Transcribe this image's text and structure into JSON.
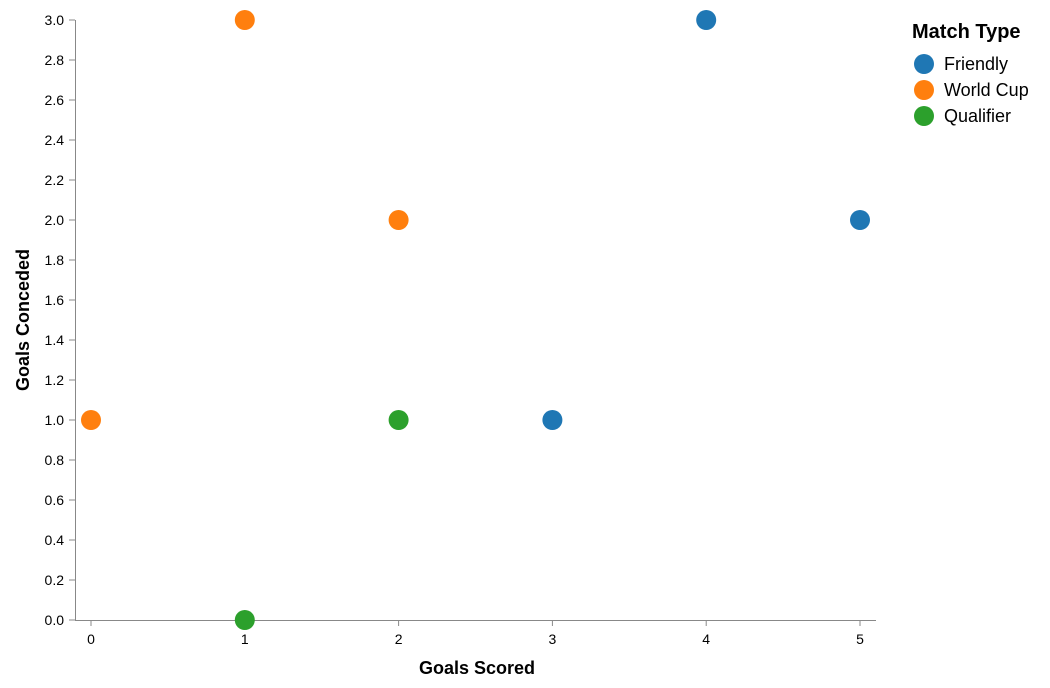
{
  "chart_data": {
    "type": "scatter",
    "xlabel": "Goals Scored",
    "ylabel": "Goals Conceded",
    "xlim": [
      0,
      5
    ],
    "ylim": [
      0,
      3
    ],
    "x_ticks": [
      "0",
      "1",
      "2",
      "3",
      "4",
      "5"
    ],
    "y_ticks": [
      "0.0",
      "0.2",
      "0.4",
      "0.6",
      "0.8",
      "1.0",
      "1.2",
      "1.4",
      "1.6",
      "1.8",
      "2.0",
      "2.2",
      "2.4",
      "2.6",
      "2.8",
      "3.0"
    ],
    "grid": false,
    "legend": {
      "title": "Match Type",
      "placement": "top-right"
    },
    "series": [
      {
        "name": "Friendly",
        "color": "#1f77b4",
        "points": [
          {
            "x": 4,
            "y": 3
          },
          {
            "x": 5,
            "y": 2
          },
          {
            "x": 3,
            "y": 1
          }
        ]
      },
      {
        "name": "World Cup",
        "color": "#ff7f0e",
        "points": [
          {
            "x": 1,
            "y": 3
          },
          {
            "x": 2,
            "y": 2
          },
          {
            "x": 0,
            "y": 1
          }
        ]
      },
      {
        "name": "Qualifier",
        "color": "#2ca02c",
        "points": [
          {
            "x": 2,
            "y": 1
          },
          {
            "x": 1,
            "y": 0
          }
        ]
      }
    ]
  }
}
